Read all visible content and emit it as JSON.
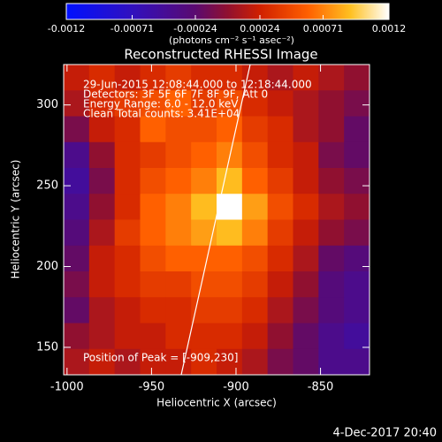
{
  "chart_data": {
    "type": "heatmap",
    "title": "Reconstructed RHESSI Image",
    "xlabel": "Heliocentric X (arcsec)",
    "ylabel": "Heliocentric Y (arcsec)",
    "xlim": [
      -1002,
      -821
    ],
    "ylim": [
      133,
      325
    ],
    "xticks": [
      -1000,
      -950,
      -900,
      -850
    ],
    "yticks": [
      150,
      200,
      250,
      300
    ],
    "colorbar": {
      "label": "(photons cm⁻² s⁻¹ asec⁻²)",
      "clim": [
        -0.0012,
        0.0012
      ],
      "ticks": [
        -0.0012,
        -0.00071,
        -0.00024,
        0.00024,
        0.00071,
        0.0012
      ]
    },
    "colorscale": [
      [
        0,
        "#0010ff"
      ],
      [
        0.2,
        "#3010c0"
      ],
      [
        0.4,
        "#5a0a70"
      ],
      [
        0.5,
        "#901030"
      ],
      [
        0.6,
        "#d02000"
      ],
      [
        0.75,
        "#ff6000"
      ],
      [
        0.88,
        "#ffc020"
      ],
      [
        1,
        "#ffffff"
      ]
    ],
    "annotations": [
      "29-Jun-2015 12:08:44.000 to 12:18:44.000",
      "Detectors: 3F 5F 6F 7F 8F 9F, Att 0",
      "Energy Range: 6.0 - 12.0 keV",
      "Clean     Total counts: 3.41E+04"
    ],
    "peak_label": "Position of Peak = [-909,230]",
    "footer": "4-Dec-2017 20:40",
    "z": [
      [
        0.0002,
        0.0003,
        0.0002,
        0.0003,
        0.0004,
        0.0003,
        0.0003,
        0.0002,
        0.0001,
        0.0002,
        0.0001,
        0
      ],
      [
        0.0001,
        0.0003,
        0.0004,
        0.0005,
        0.0006,
        0.0004,
        0.0005,
        0.0003,
        0.0002,
        0.0001,
        0,
        -0.0001
      ],
      [
        -0.0001,
        0.0002,
        0.0003,
        0.0006,
        0.0005,
        0.0005,
        0.0006,
        0.0004,
        0.0003,
        0.0001,
        0,
        -0.0002
      ],
      [
        -0.0004,
        0,
        0.0003,
        0.0004,
        0.0005,
        0.0006,
        0.0007,
        0.0005,
        0.0003,
        0.0002,
        -0.0001,
        -0.0002
      ],
      [
        -0.0005,
        -0.0001,
        0.0003,
        0.0005,
        0.0006,
        0.0007,
        0.0009,
        0.0006,
        0.0004,
        0.0002,
        0,
        -0.0001
      ],
      [
        -0.0004,
        0,
        0.0003,
        0.0006,
        0.0007,
        0.0009,
        0.0012,
        0.0008,
        0.0005,
        0.0003,
        0.0001,
        0
      ],
      [
        -0.0003,
        0.0001,
        0.0004,
        0.0006,
        0.0007,
        0.0008,
        0.0009,
        0.0007,
        0.0004,
        0.0002,
        0,
        -0.0001
      ],
      [
        -0.0002,
        0.0002,
        0.0003,
        0.0005,
        0.0006,
        0.0006,
        0.0006,
        0.0005,
        0.0003,
        0.0001,
        -0.0002,
        -0.0003
      ],
      [
        -0.0001,
        0.0002,
        0.0003,
        0.0004,
        0.0004,
        0.0005,
        0.0005,
        0.0004,
        0.0002,
        0,
        -0.0003,
        -0.0004
      ],
      [
        -0.0002,
        0.0001,
        0.0002,
        0.0003,
        0.0003,
        0.0004,
        0.0004,
        0.0003,
        0.0001,
        -0.0001,
        -0.0003,
        -0.0004
      ],
      [
        0,
        0.0001,
        0.0002,
        0.0002,
        0.0003,
        0.0003,
        0.0003,
        0.0002,
        0,
        -0.0002,
        -0.0004,
        -0.0005
      ],
      [
        0.0001,
        0.0002,
        0.0001,
        0.0002,
        0.0002,
        0.0003,
        0.0002,
        0.0001,
        -0.0001,
        -0.0002,
        -0.0004,
        -0.0004
      ]
    ]
  }
}
